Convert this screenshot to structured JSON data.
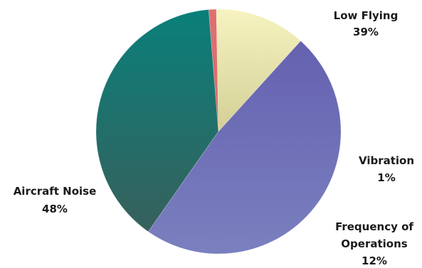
{
  "chart_data": {
    "type": "pie",
    "title": "",
    "start_angle_deg": 235,
    "direction": "clockwise",
    "slices": [
      {
        "name": "Low Flying",
        "value": 39,
        "label": "39%",
        "color_top": "#0a7f7a",
        "color_bottom": "#37605c"
      },
      {
        "name": "Vibration",
        "value": 1,
        "label": "1%",
        "color_top": "#e07070",
        "color_bottom": "#d86a6a"
      },
      {
        "name": "Frequency of Operations",
        "name_lines": [
          "Frequency of",
          "Operations"
        ],
        "value": 12,
        "label": "12%",
        "color_top": "#f6f3c0",
        "color_bottom": "#d3cf96"
      },
      {
        "name": "Aircraft Noise",
        "value": 48,
        "label": "48%",
        "color_top": "#6561b0",
        "color_bottom": "#7a80bf"
      }
    ]
  }
}
